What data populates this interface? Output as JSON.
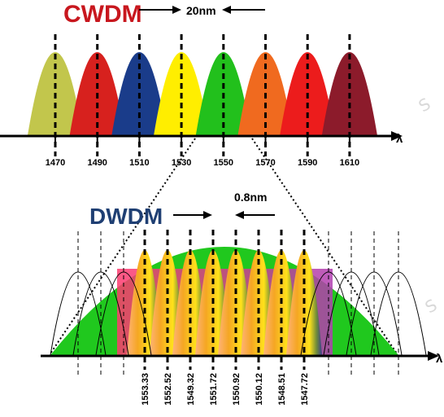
{
  "cwdm": {
    "title": "CWDM",
    "title_color": "#c8171e",
    "spacing_label": "20nm",
    "axis_symbol": "λ",
    "channels": [
      {
        "wavelength": "1470",
        "color": "#c2c64c"
      },
      {
        "wavelength": "1490",
        "color": "#d7211e"
      },
      {
        "wavelength": "1510",
        "color": "#1a3c8a"
      },
      {
        "wavelength": "1530",
        "color": "#ffee00"
      },
      {
        "wavelength": "1550",
        "color": "#22c01c"
      },
      {
        "wavelength": "1570",
        "color": "#f06a1f"
      },
      {
        "wavelength": "1590",
        "color": "#ec1c1c"
      },
      {
        "wavelength": "1610",
        "color": "#8c1b2b"
      }
    ]
  },
  "dwdm": {
    "title": "DWDM",
    "title_color": "#1f3f73",
    "spacing_label": "0.8nm",
    "axis_symbol": "λ",
    "envelope_color": "#20c81e",
    "channels": [
      "1553.33",
      "1552.52",
      "1549.32",
      "1551.72",
      "1550.92",
      "1550.12",
      "1548.51",
      "1547.72"
    ]
  },
  "watermark": "S"
}
